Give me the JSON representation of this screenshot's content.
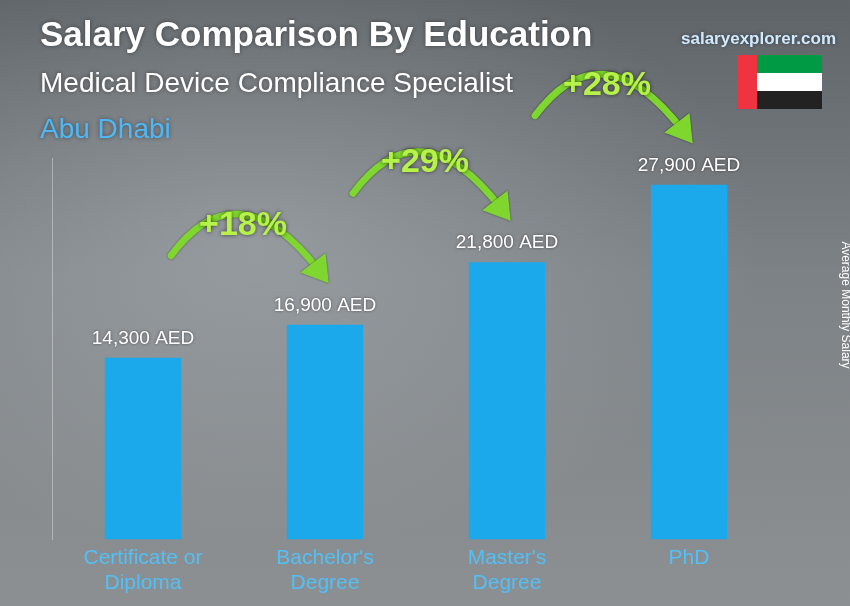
{
  "chart_data": {
    "type": "bar",
    "title": "Salary Comparison By Education",
    "subtitle": "Medical Device Compliance Specialist",
    "location": "Abu Dhabi",
    "source": "salaryexplorer.com",
    "y_label": "Average Monthly Salary",
    "categories": [
      "Certificate or Diploma",
      "Bachelor's Degree",
      "Master's Degree",
      "PhD"
    ],
    "values": [
      14300,
      16900,
      21800,
      27900
    ],
    "value_labels": [
      "14,300 AED",
      "16,900 AED",
      "21,800 AED",
      "27,900 AED"
    ],
    "data_labels": true,
    "annotations": [
      "+18%",
      "+29%",
      "+28%"
    ],
    "color": "#1ba9ec",
    "ylim": [
      0,
      30000
    ],
    "grid": false,
    "tick_labels": "x"
  }
}
